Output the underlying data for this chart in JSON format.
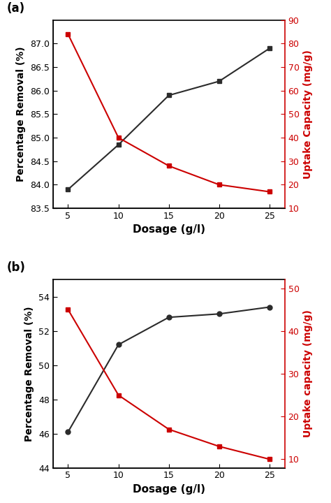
{
  "dosage": [
    5,
    10,
    15,
    20,
    25
  ],
  "a": {
    "removal": [
      83.9,
      84.85,
      85.9,
      86.2,
      86.9
    ],
    "uptake": [
      84,
      40,
      28,
      20,
      17
    ],
    "removal_ylim": [
      83.5,
      87.5
    ],
    "removal_yticks": [
      83.5,
      84.0,
      84.5,
      85.0,
      85.5,
      86.0,
      86.5,
      87.0
    ],
    "uptake_ylim": [
      10,
      90
    ],
    "uptake_yticks": [
      10,
      20,
      30,
      40,
      50,
      60,
      70,
      80,
      90
    ],
    "ylabel_left": "Percentage Removal (%)",
    "ylabel_right": "Uptake Capacity (mg/g)",
    "xlabel": "Dosage (g/l)",
    "label": "(a)"
  },
  "b": {
    "removal": [
      46.1,
      51.2,
      52.8,
      53.0,
      53.4
    ],
    "uptake": [
      45,
      25,
      17,
      13,
      10
    ],
    "removal_ylim": [
      44,
      55
    ],
    "removal_yticks": [
      44,
      46,
      48,
      50,
      52,
      54
    ],
    "uptake_ylim": [
      8,
      52
    ],
    "uptake_yticks": [
      10,
      20,
      30,
      40,
      50
    ],
    "ylabel_left": "Percentage Removal (%)",
    "ylabel_right": "Uptake capacity (mg/g)",
    "xlabel": "Dosage (g/l)",
    "label": "(b)"
  },
  "line_color_black": "#2b2b2b",
  "line_color_red": "#cc0000",
  "marker_square": "s",
  "marker_circle": "o",
  "markersize": 5,
  "linewidth": 1.5,
  "xlabel_fontsize": 11,
  "ylabel_fontsize": 10,
  "tick_fontsize": 9,
  "label_fontsize": 12
}
